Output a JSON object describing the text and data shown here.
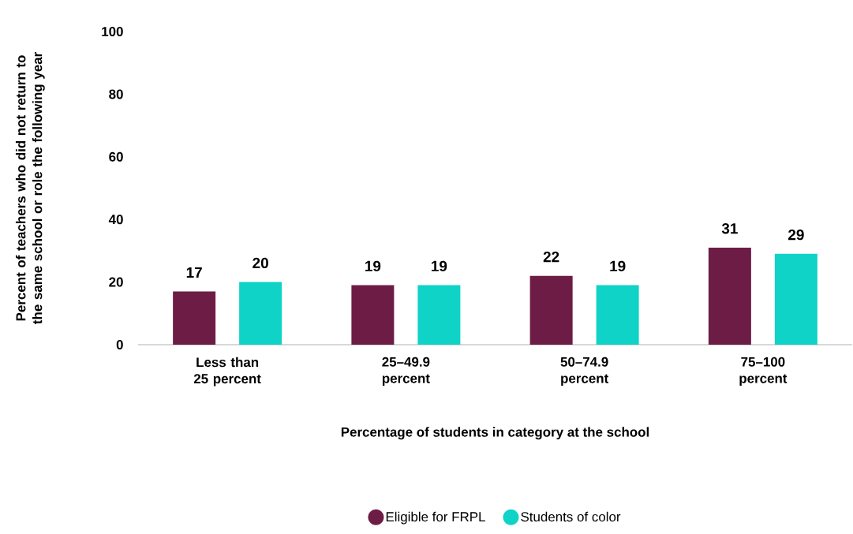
{
  "chart_data": {
    "type": "bar",
    "xlabel": "Percentage of students in category at the school",
    "ylabel": "Percent of teachers who did not return to the same school or role the following year",
    "categories": [
      "Less than 25 percent",
      "25–49.9 percent",
      "50–74.9 percent",
      "75–100 percent"
    ],
    "series": [
      {
        "name": "Eligible for FRPL",
        "color": "#6d1d45",
        "values": [
          17,
          19,
          22,
          31
        ]
      },
      {
        "name": "Students of color",
        "color": "#0fd3c6",
        "values": [
          20,
          19,
          19,
          29
        ]
      }
    ],
    "ylim": [
      0,
      100
    ],
    "yticks": [
      0,
      20,
      40,
      60,
      80,
      100
    ],
    "data_labels": true,
    "legend": "bottom",
    "grid": false
  }
}
